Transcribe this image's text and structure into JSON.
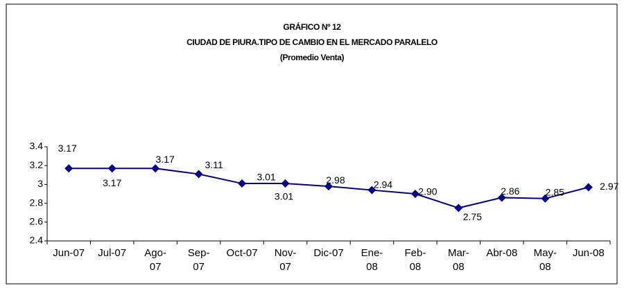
{
  "chart_data": {
    "type": "line",
    "title": "GRÁFICO Nº 12",
    "subtitle": "CIUDAD DE PIURA.TIPO DE CAMBIO EN EL MERCADO PARALELO",
    "note": "(Promedio Venta)",
    "categories": [
      "Jun-07",
      "Jul-07",
      "Ago-07",
      "Sep-07",
      "Oct-07",
      "Nov-07",
      "Dic-07",
      "Ene-08",
      "Feb-08",
      "Mar-08",
      "Abr-08",
      "May-08",
      "Jun-08"
    ],
    "values": [
      3.17,
      3.17,
      3.17,
      3.11,
      3.01,
      3.01,
      2.98,
      2.94,
      2.9,
      2.75,
      2.86,
      2.85,
      2.97
    ],
    "value_labels": [
      "3.17",
      "3.17",
      "3.17",
      "3.11",
      "3.01",
      "3.01",
      "2.98",
      "2.94",
      "2.90",
      "2.75",
      "2.86",
      "2.85",
      "2.97"
    ],
    "color": "#000080",
    "ylim": [
      2.4,
      3.4
    ],
    "yticks": [
      2.4,
      2.6,
      2.8,
      3,
      3.2,
      3.4
    ],
    "grid": false
  }
}
